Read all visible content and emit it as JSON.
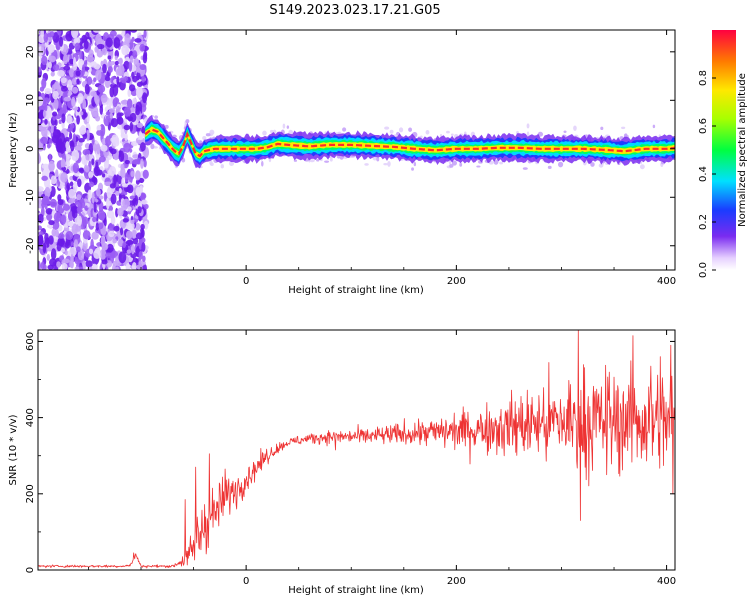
{
  "title": "S149.2023.023.17.21.G05",
  "chart_data": [
    {
      "type": "heatmap",
      "xlabel": "Height of straight line (km)",
      "ylabel": "Frequency (Hz)",
      "xlim": [
        -198,
        408
      ],
      "ylim": [
        -25,
        24.5
      ],
      "xticks": [
        0,
        200,
        400
      ],
      "yticks": [
        -20,
        -10,
        0,
        10,
        20
      ],
      "colorbar": {
        "label": "Normalized spectral amplitude",
        "range": [
          0.0,
          1.0
        ],
        "ticks": [
          0.0,
          0.2,
          0.4,
          0.6,
          0.8
        ]
      },
      "noise_region_x": [
        -198,
        -95
      ],
      "line_trace": {
        "x": [
          -96,
          -90,
          -84,
          -80,
          -76,
          -72,
          -68,
          -64,
          -60,
          -56,
          -52,
          -48,
          -44,
          -40,
          -30,
          -20,
          0,
          10,
          20,
          30,
          40,
          60,
          80,
          100,
          120,
          140,
          160,
          180,
          200,
          220,
          240,
          260,
          280,
          300,
          320,
          340,
          360,
          380,
          400,
          408
        ],
        "frequency": [
          3.0,
          4.0,
          3.5,
          2.5,
          1.5,
          0.5,
          -0.5,
          -1.0,
          0.5,
          3.0,
          1.0,
          -1.0,
          -1.5,
          -0.5,
          0.0,
          0.0,
          0.0,
          0.0,
          0.3,
          1.0,
          0.8,
          0.5,
          0.8,
          0.8,
          0.6,
          0.4,
          0.0,
          -0.3,
          0.0,
          0.0,
          0.2,
          0.2,
          0.0,
          0.0,
          0.0,
          -0.2,
          -0.5,
          0.0,
          0.0,
          0.2
        ]
      }
    },
    {
      "type": "line",
      "xlabel": "Height of straight line (km)",
      "ylabel": "SNR (10 * v/v)",
      "xlim": [
        -198,
        408
      ],
      "ylim": [
        0,
        630
      ],
      "xticks": [
        0,
        200,
        400
      ],
      "yticks": [
        0,
        200,
        400,
        600
      ],
      "color": "#ee3333",
      "series": [
        {
          "x": [
            -198,
            -160,
            -120,
            -110,
            -105,
            -100,
            -90,
            -70,
            -60,
            -55,
            -50,
            -45,
            -40,
            -30,
            -20,
            -10,
            0,
            10,
            20,
            30,
            40,
            50,
            60,
            80,
            100,
            120,
            140,
            160,
            180,
            200,
            220,
            240,
            260,
            280,
            300,
            320,
            340,
            360,
            380,
            400,
            408
          ],
          "mean": [
            10,
            10,
            10,
            12,
            40,
            10,
            10,
            10,
            25,
            30,
            60,
            90,
            120,
            150,
            190,
            210,
            240,
            270,
            300,
            320,
            335,
            340,
            345,
            350,
            350,
            352,
            355,
            360,
            362,
            365,
            370,
            375,
            380,
            385,
            388,
            390,
            392,
            393,
            392,
            390,
            390
          ],
          "spread": [
            3,
            3,
            3,
            3,
            5,
            3,
            3,
            3,
            15,
            30,
            60,
            80,
            70,
            60,
            50,
            40,
            35,
            25,
            20,
            12,
            10,
            12,
            14,
            15,
            18,
            20,
            25,
            30,
            35,
            45,
            55,
            65,
            80,
            95,
            110,
            120,
            125,
            125,
            120,
            115,
            115
          ],
          "spikes": [
            {
              "x": -107,
              "y": 45
            },
            {
              "x": -58,
              "y": 185
            },
            {
              "x": -48,
              "y": 270
            },
            {
              "x": -35,
              "y": 305
            },
            {
              "x": -20,
              "y": 265
            },
            {
              "x": 85,
              "y": 315
            },
            {
              "x": 316,
              "y": 630
            },
            {
              "x": 318,
              "y": 130
            },
            {
              "x": 368,
              "y": 615
            },
            {
              "x": 385,
              "y": 535
            },
            {
              "x": 394,
              "y": 560
            },
            {
              "x": 404,
              "y": 590
            },
            {
              "x": 406,
              "y": 200
            }
          ]
        }
      ]
    }
  ]
}
